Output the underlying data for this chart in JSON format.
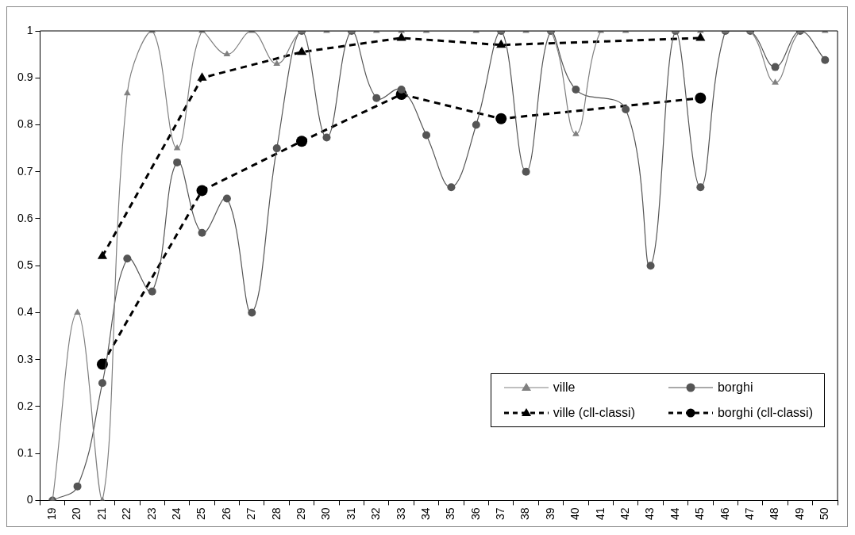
{
  "chart_data": {
    "type": "line",
    "categories": [
      "19",
      "20",
      "21",
      "22",
      "23",
      "24",
      "25",
      "26",
      "27",
      "28",
      "29",
      "30",
      "31",
      "32",
      "33",
      "34",
      "35",
      "36",
      "37",
      "38",
      "39",
      "40",
      "41",
      "42",
      "43",
      "44",
      "45",
      "46",
      "47",
      "48",
      "49",
      "50"
    ],
    "ylim": [
      0,
      1
    ],
    "yticks": [
      0,
      0.1,
      0.2,
      0.3,
      0.4,
      0.5,
      0.6,
      0.7,
      0.8,
      0.9,
      1
    ],
    "grid": false,
    "legend": "bottom right",
    "series": [
      {
        "name": "ville",
        "color": "#808080",
        "marker": "triangle",
        "line_style": "solid",
        "values": [
          0,
          0.4,
          0,
          0.867,
          1,
          0.75,
          1,
          0.95,
          1,
          0.93,
          1,
          1,
          1,
          1,
          1,
          1,
          null,
          1,
          1,
          1,
          1,
          0.78,
          1,
          1,
          null,
          1,
          1,
          1,
          1,
          0.89,
          1,
          1
        ]
      },
      {
        "name": "borghi",
        "color": "#555555",
        "marker": "circle",
        "line_style": "solid",
        "values": [
          0,
          0.03,
          0.25,
          0.515,
          0.445,
          0.72,
          0.57,
          0.643,
          0.4,
          0.75,
          1,
          0.773,
          1,
          0.857,
          0.875,
          0.778,
          0.667,
          0.8,
          1,
          0.7,
          1,
          0.875,
          null,
          0.833,
          0.5,
          1,
          0.667,
          1,
          1,
          0.923,
          1,
          0.938
        ]
      },
      {
        "name": "ville (cll-classi)",
        "color": "#000000",
        "marker": "triangle",
        "line_style": "dashed",
        "values": [
          null,
          null,
          0.52,
          null,
          null,
          null,
          0.9,
          null,
          null,
          null,
          0.955,
          null,
          null,
          null,
          0.985,
          null,
          null,
          null,
          0.97,
          null,
          null,
          null,
          null,
          null,
          null,
          null,
          0.985,
          null,
          null,
          null,
          null,
          null
        ]
      },
      {
        "name": "borghi (cll-classi)",
        "color": "#000000",
        "marker": "circle",
        "line_style": "dashed",
        "values": [
          null,
          null,
          0.29,
          null,
          null,
          null,
          0.66,
          null,
          null,
          null,
          0.765,
          null,
          null,
          null,
          0.865,
          null,
          null,
          null,
          0.813,
          null,
          null,
          null,
          null,
          null,
          null,
          null,
          0.857,
          null,
          null,
          null,
          null,
          null
        ]
      }
    ]
  }
}
